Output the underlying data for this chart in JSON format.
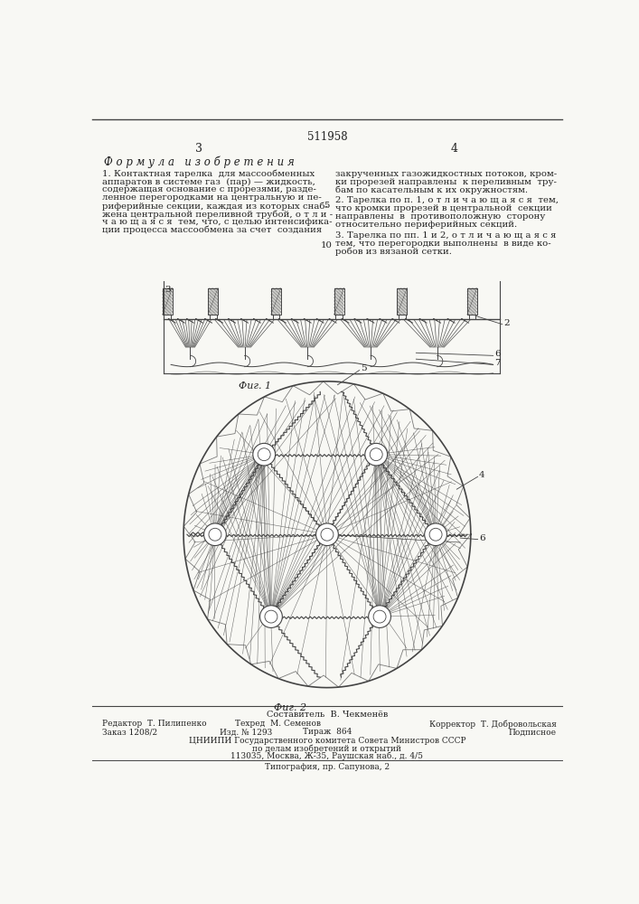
{
  "patent_number": "511958",
  "page_left": "3",
  "page_right": "4",
  "title_formula": "Ф о р м у л а   и з о б р е т е н и я",
  "text_left_lines": [
    "1. Контактная тарелка  для массообменных",
    "аппаратов в системе газ  (пар) — жидкость,",
    "содержащая основание с прорезями, разде-",
    "ленное перегородками на центральную и пе-",
    "риферийные секции, каждая из которых снаб-",
    "жена центральной переливной трубой, о т л и -",
    "ч а ю щ а я с я  тем, что, с целью интенсифика-",
    "ции процесса массообмена за счет  создания"
  ],
  "text_right_lines_1": [
    "закрученных газожидкостных потоков, кром-",
    "ки прорезей направлены  к переливным  тру-",
    "бам по касательным к их окружностям."
  ],
  "text_right_lines_2": [
    "2. Тарелка по п. 1, о т л и ч а ю щ а я с я  тем,",
    "что кромки прорезей в центральной  секции",
    "направлены  в  противоположную  сторону",
    "относительно периферийных секций."
  ],
  "text_right_lines_3": [
    "3. Тарелка по пп. 1 и 2, о т л и ч а ю щ а я с я",
    "тем, что перегородки выполнены  в виде ко-",
    "робов из вязаной сетки."
  ],
  "fig1_caption": "Фиг. 1",
  "fig2_caption": "Фиг. 2",
  "footer_composer": "Составитель  В. Чекменёв",
  "footer_editor": "Редактор  Т. Пилипенко",
  "footer_tech": "Техред  М. Семенов",
  "footer_corrector": "Корректор  Т. Добровольская",
  "footer_order": "Заказ 1208/2",
  "footer_izd": "Изд. № 1293",
  "footer_tirazh": "Тираж  864",
  "footer_podpis": "Подписное",
  "footer_cniip": "ЦНИИПИ Государственного комитета Совета Министров СССР",
  "footer_delo": "по делам изобретений и открытий",
  "footer_address": "113035, Москва, Ж-35, Раушская наб., д. 4/5",
  "footer_tipografia": "Типография, пр. Сапунова, 2",
  "bg_color": "#f8f8f4",
  "text_color": "#222222",
  "line_color": "#444444"
}
